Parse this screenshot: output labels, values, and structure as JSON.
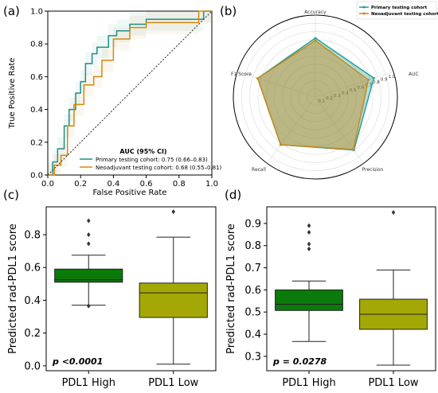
{
  "chart_data": [
    {
      "panel": "(a)",
      "type": "line",
      "xlabel": "False Positive Rate",
      "ylabel": "True Positive Rate",
      "xlim": [
        0,
        1
      ],
      "ylim": [
        0,
        1
      ],
      "xticks": [
        "0.0",
        "0.2",
        "0.4",
        "0.6",
        "0.8",
        "1.0"
      ],
      "yticks": [
        "0.0",
        "0.2",
        "0.4",
        "0.6",
        "0.8",
        "1.0"
      ],
      "grid": false,
      "legend_title": "AUC (95% CI)",
      "legend_position": "lower-right",
      "series": [
        {
          "name": "Primary testing cohort: 0.75 (0.66–0.83)",
          "color": "#1f8f87",
          "x": [
            0,
            0.03,
            0.03,
            0.06,
            0.06,
            0.1,
            0.1,
            0.13,
            0.13,
            0.17,
            0.17,
            0.2,
            0.2,
            0.23,
            0.23,
            0.27,
            0.27,
            0.3,
            0.3,
            0.37,
            0.37,
            0.42,
            0.42,
            0.5,
            0.5,
            0.6,
            0.6,
            0.95,
            0.95,
            1.0
          ],
          "y": [
            0,
            0,
            0.08,
            0.08,
            0.16,
            0.16,
            0.3,
            0.3,
            0.4,
            0.4,
            0.5,
            0.5,
            0.57,
            0.57,
            0.68,
            0.68,
            0.74,
            0.74,
            0.78,
            0.78,
            0.85,
            0.85,
            0.88,
            0.88,
            0.92,
            0.92,
            0.95,
            0.95,
            1.0,
            1.0
          ]
        },
        {
          "name": "Neoadjuvant testing cohort: 0.68 (0.55–0.81)",
          "color": "#d4880f",
          "x": [
            0,
            0.04,
            0.04,
            0.08,
            0.08,
            0.12,
            0.12,
            0.16,
            0.16,
            0.22,
            0.22,
            0.28,
            0.28,
            0.33,
            0.33,
            0.4,
            0.4,
            0.5,
            0.5,
            0.6,
            0.6,
            0.92,
            0.92,
            1.0
          ],
          "y": [
            0,
            0,
            0.06,
            0.06,
            0.12,
            0.12,
            0.3,
            0.3,
            0.43,
            0.43,
            0.55,
            0.55,
            0.6,
            0.6,
            0.7,
            0.7,
            0.83,
            0.83,
            0.9,
            0.9,
            0.93,
            0.93,
            1.0,
            1.0
          ]
        },
        {
          "name": "",
          "color": "#333333",
          "style": "dotted",
          "x": [
            0,
            1
          ],
          "y": [
            0,
            1
          ]
        }
      ]
    },
    {
      "panel": "(b)",
      "type": "radar",
      "axes": [
        "Accuracy",
        "AUC",
        "Precision",
        "Recall",
        "F1 Score"
      ],
      "radial_ticks": [
        "0.1",
        "0.2",
        "0.3",
        "0.4",
        "0.5",
        "0.6",
        "0.7",
        "0.8",
        "0.9",
        "1.0"
      ],
      "rlim": [
        0,
        1
      ],
      "legend_position": "top-right",
      "series": [
        {
          "name": "Primary testing cohort",
          "color": "#1f9e94",
          "values": [
            0.72,
            0.75,
            0.8,
            0.72,
            0.74
          ]
        },
        {
          "name": "Neoadjuvant testing cohort",
          "color": "#c8891a",
          "values": [
            0.69,
            0.68,
            0.79,
            0.72,
            0.74
          ]
        }
      ]
    },
    {
      "panel": "(c)",
      "type": "box",
      "ylabel": "Predicted rad-PDL1 score",
      "ylim": [
        -0.03,
        0.97
      ],
      "yticks": [
        "0.0",
        "0.2",
        "0.4",
        "0.6",
        "0.8"
      ],
      "categories": [
        "PDL1 High",
        "PDL1 Low"
      ],
      "annotation": "p <0.0001",
      "boxes": [
        {
          "category": "PDL1 High",
          "color": "#0a7a0a",
          "q1": 0.51,
          "median": 0.525,
          "q3": 0.59,
          "whisker_low": 0.37,
          "whisker_high": 0.675,
          "outliers": [
            0.885,
            0.8,
            0.745,
            0.365
          ]
        },
        {
          "category": "PDL1 Low",
          "color": "#a3a806",
          "q1": 0.295,
          "median": 0.445,
          "q3": 0.505,
          "whisker_low": 0.01,
          "whisker_high": 0.785,
          "outliers": [
            0.94
          ]
        }
      ]
    },
    {
      "panel": "(d)",
      "type": "box",
      "ylabel": "Predicted rad-PDL1 score",
      "ylim": [
        0.235,
        0.975
      ],
      "yticks": [
        "0.3",
        "0.4",
        "0.5",
        "0.6",
        "0.7",
        "0.8",
        "0.9"
      ],
      "categories": [
        "PDL1 High",
        "PDL1 Low"
      ],
      "annotation": "p = 0.0278",
      "boxes": [
        {
          "category": "PDL1 High",
          "color": "#0a7a0a",
          "q1": 0.507,
          "median": 0.535,
          "q3": 0.6,
          "whisker_low": 0.367,
          "whisker_high": 0.64,
          "outliers": [
            0.89,
            0.86,
            0.807,
            0.785
          ]
        },
        {
          "category": "PDL1 Low",
          "color": "#a3a806",
          "q1": 0.422,
          "median": 0.49,
          "q3": 0.558,
          "whisker_low": 0.26,
          "whisker_high": 0.69,
          "outliers": [
            0.95
          ]
        }
      ]
    }
  ]
}
